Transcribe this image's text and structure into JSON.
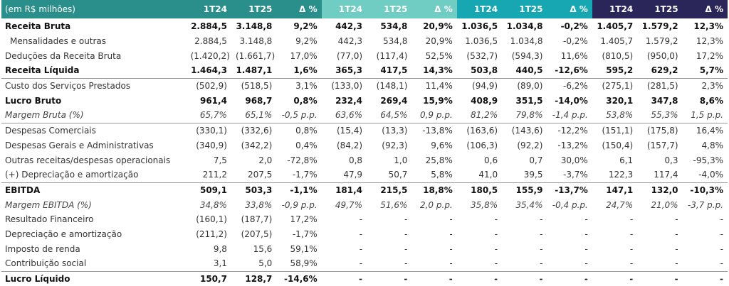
{
  "table": {
    "header": {
      "label": "(em R$ milhões)",
      "groups": [
        [
          "1T24",
          "1T25",
          "Δ %"
        ],
        [
          "1T24",
          "1T25",
          "Δ %"
        ],
        [
          "1T24",
          "1T25",
          "Δ %"
        ],
        [
          "1T24",
          "1T25",
          "Δ %"
        ]
      ]
    },
    "rows": [
      {
        "label": "Receita Bruta",
        "style": "bold",
        "values": [
          "2.884,5",
          "3.148,8",
          "9,2%",
          "442,3",
          "534,8",
          "20,9%",
          "1.036,5",
          "1.034,8",
          "-0,2%",
          "1.405,7",
          "1.579,2",
          "12,3%"
        ]
      },
      {
        "label": "Mensalidades e outras",
        "style": "indent",
        "values": [
          "2.884,5",
          "3.148,8",
          "9,2%",
          "442,3",
          "534,8",
          "20,9%",
          "1.036,5",
          "1.034,8",
          "-0,2%",
          "1.405,7",
          "1.579,2",
          "12,3%"
        ]
      },
      {
        "label": "Deduções da Receita Bruta",
        "style": "normal",
        "values": [
          "(1.420,2)",
          "(1.661,7)",
          "17,0%",
          "(77,0)",
          "(117,4)",
          "52,5%",
          "(532,7)",
          "(594,3)",
          "11,6%",
          "(810,5)",
          "(950,0)",
          "17,2%"
        ]
      },
      {
        "label": "Receita Líquida",
        "style": "bold",
        "values": [
          "1.464,3",
          "1.487,1",
          "1,6%",
          "365,3",
          "417,5",
          "14,3%",
          "503,8",
          "440,5",
          "-12,6%",
          "595,2",
          "629,2",
          "5,7%"
        ]
      },
      {
        "label": "Custo dos Serviços Prestados",
        "style": "normal",
        "border": true,
        "values": [
          "(502,9)",
          "(518,5)",
          "3,1%",
          "(133,0)",
          "(148,1)",
          "11,4%",
          "(94,9)",
          "(89,0)",
          "-6,2%",
          "(275,1)",
          "(281,5)",
          "2,3%"
        ]
      },
      {
        "label": "Lucro Bruto",
        "style": "bold",
        "values": [
          "961,4",
          "968,7",
          "0,8%",
          "232,4",
          "269,4",
          "15,9%",
          "408,9",
          "351,5",
          "-14,0%",
          "320,1",
          "347,8",
          "8,6%"
        ]
      },
      {
        "label": "Margem Bruta (%)",
        "style": "italic",
        "values": [
          "65,7%",
          "65,1%",
          "-0,5 p.p.",
          "63,6%",
          "64,5%",
          "0,9 p.p.",
          "81,2%",
          "79,8%",
          "-1,4 p.p.",
          "53,8%",
          "55,3%",
          "1,5 p.p."
        ]
      },
      {
        "label": "Despesas Comerciais",
        "style": "normal",
        "border": true,
        "values": [
          "(330,1)",
          "(332,6)",
          "0,8%",
          "(15,4)",
          "(13,3)",
          "-13,8%",
          "(163,6)",
          "(143,6)",
          "-12,2%",
          "(151,1)",
          "(175,8)",
          "16,4%"
        ]
      },
      {
        "label": "Despesas Gerais e Administrativas",
        "style": "normal",
        "values": [
          "(340,9)",
          "(342,2)",
          "0,4%",
          "(84,2)",
          "(92,3)",
          "9,6%",
          "(106,3)",
          "(92,2)",
          "-13,2%",
          "(150,4)",
          "(157,7)",
          "4,8%"
        ]
      },
      {
        "label": "Outras receitas/despesas operacionais",
        "style": "normal",
        "values": [
          "7,5",
          "2,0",
          "-72,8%",
          "0,8",
          "1,0",
          "25,8%",
          "0,6",
          "0,7",
          "30,0%",
          "6,1",
          "0,3",
          "-95,3%"
        ]
      },
      {
        "label": "(+) Depreciação e amortização",
        "style": "normal",
        "values": [
          "211,2",
          "207,5",
          "-1,7%",
          "47,9",
          "50,7",
          "5,8%",
          "41,0",
          "39,5",
          "-3,7%",
          "122,3",
          "117,4",
          "-4,0%"
        ]
      },
      {
        "label": "EBITDA",
        "style": "bold",
        "border": true,
        "values": [
          "509,1",
          "503,3",
          "-1,1%",
          "181,4",
          "215,5",
          "18,8%",
          "180,5",
          "155,9",
          "-13,7%",
          "147,1",
          "132,0",
          "-10,3%"
        ]
      },
      {
        "label": "Margem EBITDA (%)",
        "style": "italic",
        "values": [
          "34,8%",
          "33,8%",
          "-0,9 p.p.",
          "49,7%",
          "51,6%",
          "2,0 p.p.",
          "35,8%",
          "35,4%",
          "-0,4 p.p.",
          "24,7%",
          "21,0%",
          "-3,7 p.p."
        ]
      },
      {
        "label": "Resultado Financeiro",
        "style": "normal",
        "values": [
          "(160,1)",
          "(187,7)",
          "17,2%",
          "-",
          "-",
          "-",
          "-",
          "-",
          "-",
          "-",
          "-",
          "-"
        ]
      },
      {
        "label": "Depreciação e amortização",
        "style": "normal",
        "values": [
          "(211,2)",
          "(207,5)",
          "-1,7%",
          "-",
          "-",
          "-",
          "-",
          "-",
          "-",
          "-",
          "-",
          "-"
        ]
      },
      {
        "label": "Imposto de renda",
        "style": "normal",
        "values": [
          "9,8",
          "15,6",
          "59,1%",
          "-",
          "-",
          "-",
          "-",
          "-",
          "-",
          "-",
          "-",
          "-"
        ]
      },
      {
        "label": "Contribuição social",
        "style": "normal",
        "values": [
          "3,1",
          "5,0",
          "58,9%",
          "-",
          "-",
          "-",
          "-",
          "-",
          "-",
          "-",
          "-",
          "-"
        ]
      },
      {
        "label": "Lucro Líquido",
        "style": "bold",
        "border": true,
        "values": [
          "150,7",
          "128,7",
          "-14,6%",
          "-",
          "-",
          "-",
          "-",
          "-",
          "-",
          "-",
          "-",
          "-"
        ]
      }
    ]
  },
  "colors": {
    "group_0": "#2a8f8a",
    "group_1": "#6fcdc3",
    "group_2": "#17a7b2",
    "group_3": "#2a2659"
  }
}
